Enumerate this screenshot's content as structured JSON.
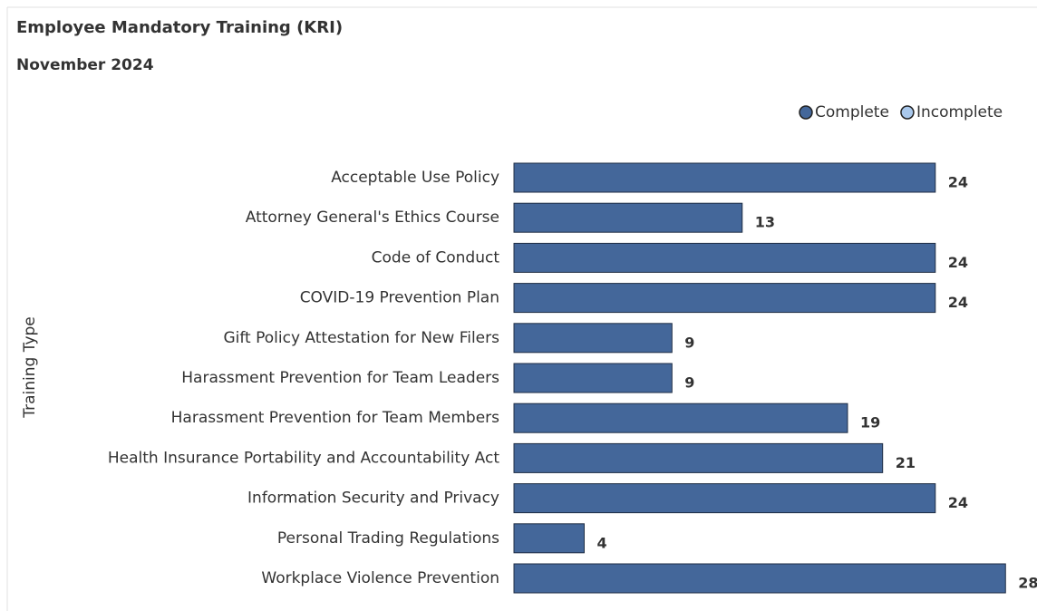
{
  "chart_data": {
    "type": "hbar",
    "title": "Employee Mandatory Training (KRI)",
    "subtitle": "November 2024",
    "y_label": "Training Type",
    "categories": [
      "Acceptable Use Policy",
      "Attorney General's Ethics Course",
      "Code of Conduct",
      "COVID-19 Prevention Plan",
      "Gift Policy Attestation for New Filers",
      "Harassment Prevention for Team Leaders",
      "Harassment Prevention for Team Members",
      "Health Insurance Portability and Accountability Act",
      "Information Security and Privacy",
      "Personal Trading Regulations",
      "Workplace Violence Prevention"
    ],
    "series": [
      {
        "name": "Complete",
        "color": "#44679a",
        "values": [
          24,
          13,
          24,
          24,
          9,
          9,
          19,
          21,
          24,
          4,
          28
        ]
      },
      {
        "name": "Incomplete",
        "color": "#a9c8ec",
        "values": [
          null,
          null,
          null,
          null,
          null,
          null,
          null,
          null,
          null,
          null,
          null
        ]
      }
    ],
    "xlim": [
      0,
      30
    ],
    "legend": "top-right"
  }
}
